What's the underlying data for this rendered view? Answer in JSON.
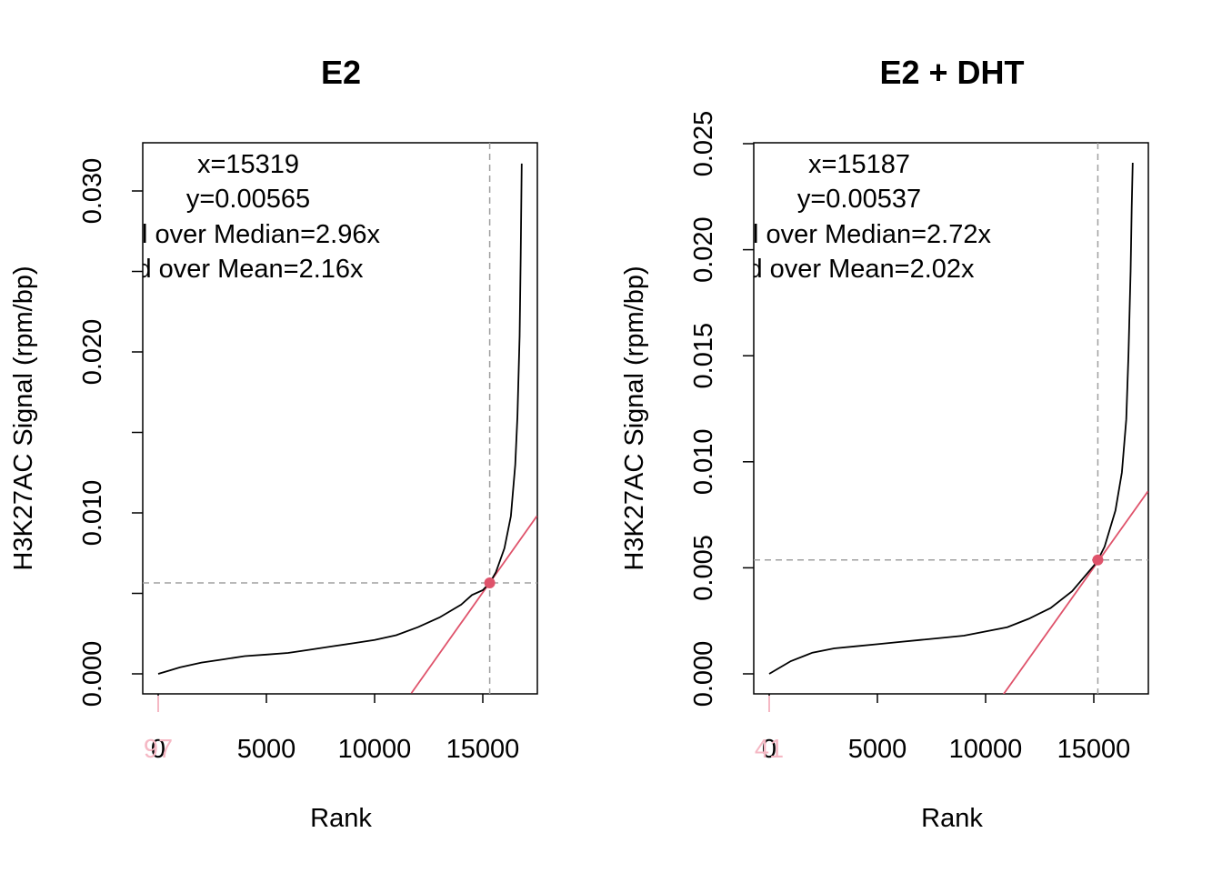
{
  "chart_data": [
    {
      "type": "line",
      "title": "E2",
      "xlabel": "Rank",
      "ylabel": "H3K27AC Signal (rpm/bp)",
      "xlim": [
        0,
        17500
      ],
      "ylim": [
        0,
        0.031
      ],
      "x_ticks": [
        0,
        5000,
        10000,
        15000
      ],
      "x_tick_labels": [
        "0",
        "5000",
        "10000",
        "15000"
      ],
      "y_ticks": [
        0,
        0.005,
        0.01,
        0.015,
        0.02,
        0.025,
        0.03
      ],
      "y_tick_labels": [
        "0.000",
        "",
        "0.010",
        "",
        "0.020",
        "",
        "0.030"
      ],
      "series": [
        {
          "color": "#000000",
          "x": [
            0,
            500,
            1000,
            2000,
            3000,
            4000,
            5000,
            6000,
            7000,
            8000,
            9000,
            10000,
            11000,
            12000,
            13000,
            14000,
            14500,
            15000,
            15319,
            15600,
            16000,
            16300,
            16500,
            16600,
            16700,
            16750,
            16800
          ],
          "y": [
            0.0,
            0.0002,
            0.0004,
            0.0007,
            0.0009,
            0.0011,
            0.0012,
            0.0013,
            0.0015,
            0.0017,
            0.0019,
            0.0021,
            0.0024,
            0.0029,
            0.0035,
            0.0043,
            0.0049,
            0.0052,
            0.00565,
            0.0063,
            0.0078,
            0.0098,
            0.013,
            0.016,
            0.021,
            0.026,
            0.0317
          ]
        }
      ],
      "tangent": {
        "color": "#df536b",
        "x": [
          11700,
          17500
        ],
        "y": [
          -0.0012,
          0.0098
        ]
      },
      "cutoff": {
        "x": 15319,
        "y": 0.00565,
        "line_color": "#a0a0a0",
        "point_color": "#df536b"
      },
      "rug_marker": {
        "x": 0,
        "label": "97",
        "color": "#f5b8c4"
      },
      "annotations": [
        "x=15319",
        "y=0.00565",
        "l over Median=2.96x",
        "d over Mean=2.16x"
      ]
    },
    {
      "type": "line",
      "title": "E2 + DHT",
      "xlabel": "Rank",
      "ylabel": "H3K27AC Signal (rpm/bp)",
      "xlim": [
        0,
        17500
      ],
      "ylim": [
        0,
        0.025
      ],
      "x_ticks": [
        0,
        5000,
        10000,
        15000
      ],
      "x_tick_labels": [
        "0",
        "5000",
        "10000",
        "15000"
      ],
      "y_ticks": [
        0,
        0.005,
        0.01,
        0.015,
        0.02,
        0.025
      ],
      "y_tick_labels": [
        "0.000",
        "0.005",
        "0.010",
        "0.015",
        "0.020",
        "0.025"
      ],
      "series": [
        {
          "color": "#000000",
          "x": [
            0,
            500,
            1000,
            2000,
            3000,
            4000,
            5000,
            6000,
            7000,
            8000,
            9000,
            10000,
            11000,
            12000,
            13000,
            14000,
            14500,
            15000,
            15187,
            15500,
            16000,
            16300,
            16500,
            16600,
            16700,
            16750,
            16800
          ],
          "y": [
            0.0,
            0.0003,
            0.0006,
            0.001,
            0.0012,
            0.0013,
            0.0014,
            0.0015,
            0.0016,
            0.0017,
            0.0018,
            0.002,
            0.0022,
            0.0026,
            0.0031,
            0.0039,
            0.0045,
            0.0051,
            0.00537,
            0.006,
            0.0077,
            0.0095,
            0.012,
            0.015,
            0.019,
            0.022,
            0.0241
          ]
        }
      ],
      "tangent": {
        "color": "#df536b",
        "x": [
          10800,
          17500
        ],
        "y": [
          -0.001,
          0.0086
        ]
      },
      "cutoff": {
        "x": 15187,
        "y": 0.00537,
        "line_color": "#a0a0a0",
        "point_color": "#df536b"
      },
      "rug_marker": {
        "x": 0,
        "label": "41",
        "color": "#f5b8c4"
      },
      "annotations": [
        "x=15187",
        "y=0.00537",
        "l over Median=2.72x",
        "d over Mean=2.02x"
      ]
    }
  ]
}
